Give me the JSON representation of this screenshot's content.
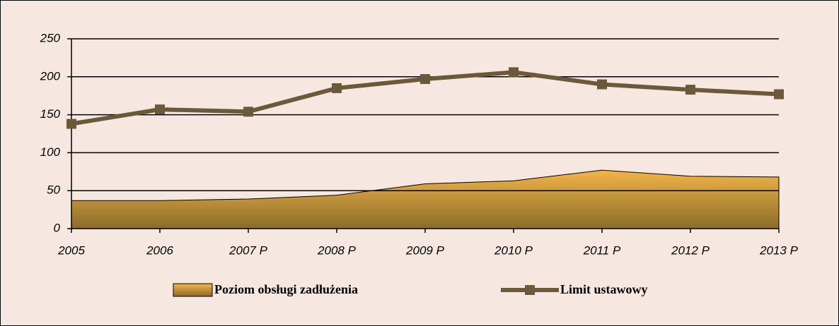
{
  "chart_data": {
    "type": "line",
    "categories": [
      "2005",
      "2006",
      "2007 P",
      "2008 P",
      "2009 P",
      "2010 P",
      "2011 P",
      "2012 P",
      "2013 P"
    ],
    "series": [
      {
        "name": "Poziom obsługi zadłużenia",
        "type": "area",
        "color": "#c8953a",
        "values": [
          37,
          37,
          39,
          44,
          59,
          63,
          77,
          69,
          68
        ]
      },
      {
        "name": "Limit ustawowy",
        "type": "line",
        "color": "#6b5a3a",
        "values": [
          138,
          157,
          154,
          185,
          197,
          206,
          190,
          183,
          177
        ]
      }
    ],
    "ylim": [
      0,
      250
    ],
    "yticks": [
      0,
      50,
      100,
      150,
      200,
      250
    ],
    "grid": true,
    "legend": "bottom"
  }
}
